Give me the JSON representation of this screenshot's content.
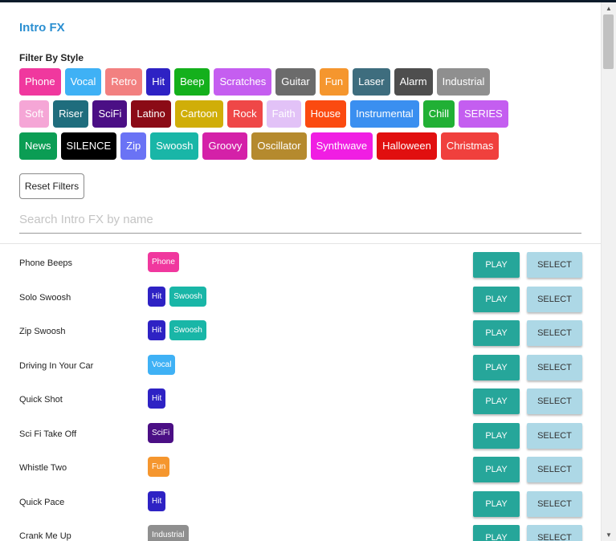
{
  "title": "Intro FX",
  "filter_label": "Filter By Style",
  "chips": [
    [
      {
        "label": "Phone",
        "color": "#f0389e"
      },
      {
        "label": "Vocal",
        "color": "#3fb1f5"
      },
      {
        "label": "Retro",
        "color": "#f28080"
      },
      {
        "label": "Hit",
        "color": "#2e22c4"
      },
      {
        "label": "Beep",
        "color": "#14b01c"
      },
      {
        "label": "Scratches",
        "color": "#c55ef0"
      },
      {
        "label": "Guitar",
        "color": "#6b6b6b"
      },
      {
        "label": "Fun",
        "color": "#f5962e"
      },
      {
        "label": "Laser",
        "color": "#3e6d7e"
      },
      {
        "label": "Alarm",
        "color": "#4e4e4e"
      },
      {
        "label": "Industrial",
        "color": "#8f8f8f"
      }
    ],
    [
      {
        "label": "Soft",
        "color": "#f5a6d6"
      },
      {
        "label": "Riser",
        "color": "#1f6d7d"
      },
      {
        "label": "SciFi",
        "color": "#4b0f85"
      },
      {
        "label": "Latino",
        "color": "#8b0b16"
      },
      {
        "label": "Cartoon",
        "color": "#d0ae08"
      },
      {
        "label": "Rock",
        "color": "#ef4747"
      },
      {
        "label": "Faith",
        "color": "#e2c2f7"
      },
      {
        "label": "House",
        "color": "#fb4a10"
      },
      {
        "label": "Instrumental",
        "color": "#3a8ff0"
      },
      {
        "label": "Chill",
        "color": "#21b035"
      },
      {
        "label": "SERIES",
        "color": "#c45ef0"
      }
    ],
    [
      {
        "label": "News",
        "color": "#0b9d54"
      },
      {
        "label": "SILENCE",
        "color": "#000000"
      },
      {
        "label": "Zip",
        "color": "#6a73f5"
      },
      {
        "label": "Swoosh",
        "color": "#19b6a7"
      },
      {
        "label": "Groovy",
        "color": "#d421a8"
      },
      {
        "label": "Oscillator",
        "color": "#b58a2e"
      },
      {
        "label": "Synthwave",
        "color": "#f01ee3"
      },
      {
        "label": "Halloween",
        "color": "#e10f0f"
      },
      {
        "label": "Christmas",
        "color": "#f0403d"
      }
    ]
  ],
  "reset_label": "Reset Filters",
  "search_placeholder": "Search Intro FX by name",
  "play_label": "PLAY",
  "select_label": "SELECT",
  "rows": [
    {
      "name": "Phone Beeps",
      "tags": [
        {
          "label": "Phone",
          "color": "#f0389e"
        }
      ]
    },
    {
      "name": "Solo Swoosh",
      "tags": [
        {
          "label": "Hit",
          "color": "#2e22c4"
        },
        {
          "label": "Swoosh",
          "color": "#19b6a7"
        }
      ]
    },
    {
      "name": "Zip Swoosh",
      "tags": [
        {
          "label": "Hit",
          "color": "#2e22c4"
        },
        {
          "label": "Swoosh",
          "color": "#19b6a7"
        }
      ]
    },
    {
      "name": "Driving In Your Car",
      "tags": [
        {
          "label": "Vocal",
          "color": "#3fb1f5"
        }
      ]
    },
    {
      "name": "Quick Shot",
      "tags": [
        {
          "label": "Hit",
          "color": "#2e22c4"
        }
      ]
    },
    {
      "name": "Sci Fi Take Off",
      "tags": [
        {
          "label": "SciFi",
          "color": "#4b0f85"
        }
      ]
    },
    {
      "name": "Whistle Two",
      "tags": [
        {
          "label": "Fun",
          "color": "#f5962e"
        }
      ]
    },
    {
      "name": "Quick Pace",
      "tags": [
        {
          "label": "Hit",
          "color": "#2e22c4"
        }
      ]
    },
    {
      "name": "Crank Me Up",
      "tags": [
        {
          "label": "Industrial",
          "color": "#8f8f8f"
        }
      ]
    }
  ]
}
